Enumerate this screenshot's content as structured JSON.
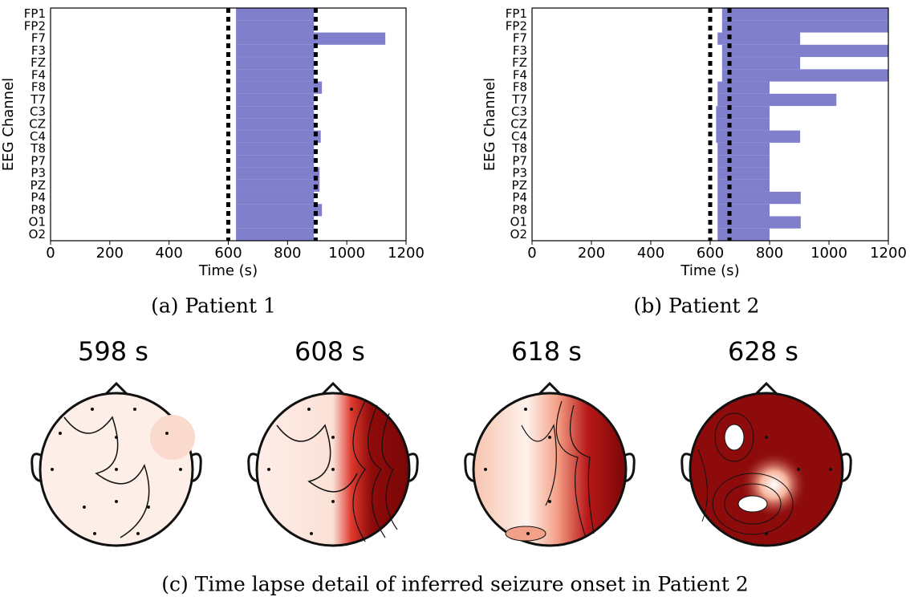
{
  "chart_data": [
    {
      "type": "range_bar",
      "xlabel": "Time (s)",
      "ylabel": "EEG Channel",
      "categories": [
        "FP1",
        "FP2",
        "F7",
        "F3",
        "FZ",
        "F4",
        "F8",
        "T7",
        "C3",
        "CZ",
        "C4",
        "T8",
        "P7",
        "P3",
        "PZ",
        "P4",
        "P8",
        "O1",
        "O2"
      ],
      "start": [
        626,
        626,
        626,
        626,
        626,
        626,
        626,
        626,
        626,
        626,
        626,
        626,
        626,
        626,
        626,
        626,
        626,
        626,
        626
      ],
      "end": [
        889,
        889,
        1130,
        889,
        889,
        889,
        916,
        889,
        889,
        889,
        912,
        889,
        889,
        908,
        908,
        889,
        916,
        889,
        889
      ],
      "color": "#7f7fcc",
      "vlines": [
        600,
        895
      ],
      "xlim": [
        0,
        1200
      ],
      "xticks": [
        0,
        200,
        400,
        600,
        800,
        1000,
        1200
      ]
    },
    {
      "type": "range_bar",
      "xlabel": "Time (s)",
      "ylabel": "EEG Channel",
      "categories": [
        "FP1",
        "FP2",
        "F7",
        "F3",
        "FZ",
        "F4",
        "F8",
        "T7",
        "C3",
        "CZ",
        "C4",
        "T8",
        "P7",
        "P3",
        "PZ",
        "P4",
        "P8",
        "O1",
        "O2"
      ],
      "start": [
        640,
        640,
        625,
        640,
        640,
        640,
        625,
        625,
        620,
        620,
        620,
        625,
        625,
        625,
        625,
        625,
        625,
        625,
        625
      ],
      "end": [
        1200,
        1200,
        903,
        1200,
        903,
        1200,
        800,
        1025,
        800,
        800,
        903,
        800,
        800,
        800,
        800,
        905,
        800,
        905,
        800
      ],
      "color": "#7f7fcc",
      "vlines": [
        600,
        665
      ],
      "xlim": [
        0,
        1200
      ],
      "xticks": [
        0,
        200,
        400,
        600,
        800,
        1000,
        1200
      ]
    }
  ],
  "captions": [
    "(a) Patient 1",
    "(b) Patient 2",
    "(c) Time lapse detail of inferred seizure onset in Patient 2"
  ],
  "topomaps": [
    {
      "title": "598 s"
    },
    {
      "title": "608 s"
    },
    {
      "title": "618 s"
    },
    {
      "title": "628 s"
    }
  ]
}
